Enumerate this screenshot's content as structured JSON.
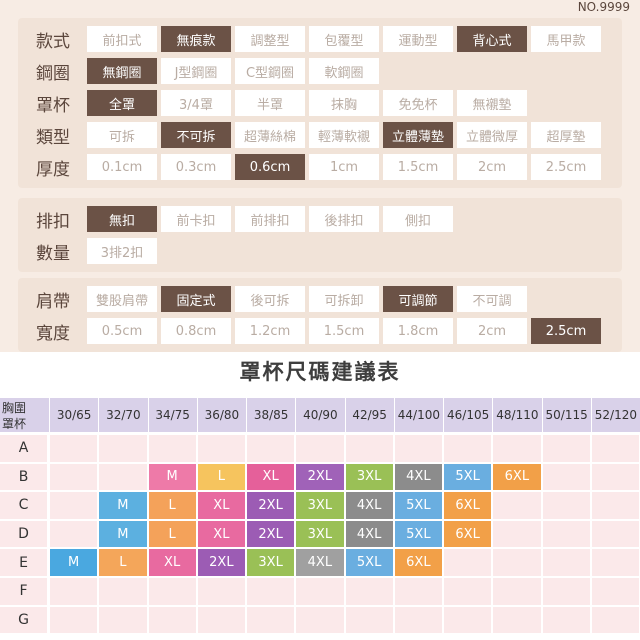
{
  "product_no": "NO.9999",
  "spec_groups": [
    {
      "rows": [
        {
          "label": "款式",
          "options": [
            {
              "text": "前扣式",
              "selected": false
            },
            {
              "text": "無痕款",
              "selected": true
            },
            {
              "text": "調整型",
              "selected": false
            },
            {
              "text": "包覆型",
              "selected": false
            },
            {
              "text": "運動型",
              "selected": false
            },
            {
              "text": "背心式",
              "selected": true
            },
            {
              "text": "馬甲款",
              "selected": false
            }
          ]
        },
        {
          "label": "鋼圈",
          "options": [
            {
              "text": "無鋼圈",
              "selected": true
            },
            {
              "text": "J型鋼圈",
              "selected": false
            },
            {
              "text": "C型鋼圈",
              "selected": false
            },
            {
              "text": "軟鋼圈",
              "selected": false
            }
          ]
        },
        {
          "label": "罩杯",
          "options": [
            {
              "text": "全罩",
              "selected": true
            },
            {
              "text": "3/4罩",
              "selected": false
            },
            {
              "text": "半罩",
              "selected": false
            },
            {
              "text": "抹胸",
              "selected": false
            },
            {
              "text": "免免杯",
              "selected": false
            },
            {
              "text": "無襯墊",
              "selected": false
            }
          ]
        },
        {
          "label": "類型",
          "options": [
            {
              "text": "可拆",
              "selected": false
            },
            {
              "text": "不可拆",
              "selected": true
            },
            {
              "text": "超薄絲棉",
              "selected": false
            },
            {
              "text": "輕薄軟襯",
              "selected": false
            },
            {
              "text": "立體薄墊",
              "selected": true
            },
            {
              "text": "立體微厚",
              "selected": false
            },
            {
              "text": "超厚墊",
              "selected": false
            }
          ]
        },
        {
          "label": "厚度",
          "options": [
            {
              "text": "0.1cm",
              "selected": false
            },
            {
              "text": "0.3cm",
              "selected": false
            },
            {
              "text": "0.6cm",
              "selected": true
            },
            {
              "text": "1cm",
              "selected": false
            },
            {
              "text": "1.5cm",
              "selected": false
            },
            {
              "text": "2cm",
              "selected": false
            },
            {
              "text": "2.5cm",
              "selected": false
            }
          ]
        }
      ]
    },
    {
      "rows": [
        {
          "label": "排扣",
          "options": [
            {
              "text": "無扣",
              "selected": true
            },
            {
              "text": "前卡扣",
              "selected": false
            },
            {
              "text": "前排扣",
              "selected": false
            },
            {
              "text": "後排扣",
              "selected": false
            },
            {
              "text": "側扣",
              "selected": false
            }
          ]
        },
        {
          "label": "數量",
          "options": [
            {
              "text": "3排2扣",
              "selected": false
            }
          ]
        }
      ]
    },
    {
      "rows": [
        {
          "label": "肩帶",
          "options": [
            {
              "text": "雙股肩帶",
              "selected": false
            },
            {
              "text": "固定式",
              "selected": true
            },
            {
              "text": "後可拆",
              "selected": false
            },
            {
              "text": "可拆卸",
              "selected": false
            },
            {
              "text": "可調節",
              "selected": true
            },
            {
              "text": "不可調",
              "selected": false
            }
          ]
        },
        {
          "label": "寬度",
          "options": [
            {
              "text": "0.5cm",
              "selected": false
            },
            {
              "text": "0.8cm",
              "selected": false
            },
            {
              "text": "1.2cm",
              "selected": false
            },
            {
              "text": "1.5cm",
              "selected": false
            },
            {
              "text": "1.8cm",
              "selected": false
            },
            {
              "text": "2cm",
              "selected": false
            },
            {
              "text": "2.5cm",
              "selected": true
            }
          ]
        }
      ]
    }
  ],
  "size_table": {
    "title": "罩杯尺碼建議表",
    "corner": [
      "胸圍",
      "罩杯"
    ],
    "columns": [
      "30/65",
      "32/70",
      "34/75",
      "36/80",
      "38/85",
      "40/90",
      "42/95",
      "44/100",
      "46/105",
      "48/110",
      "50/115",
      "52/120"
    ],
    "rows": [
      {
        "cup": "A",
        "cells": [
          null,
          null,
          null,
          null,
          null,
          null,
          null,
          null,
          null,
          null,
          null,
          null
        ]
      },
      {
        "cup": "B",
        "cells": [
          null,
          null,
          {
            "text": "M",
            "color": "#ee7aa8"
          },
          {
            "text": "L",
            "color": "#f6c45e"
          },
          {
            "text": "XL",
            "color": "#e5609a"
          },
          {
            "text": "2XL",
            "color": "#a062b8"
          },
          {
            "text": "3XL",
            "color": "#9ac056"
          },
          {
            "text": "4XL",
            "color": "#8c8c8c"
          },
          {
            "text": "5XL",
            "color": "#6aaee0"
          },
          {
            "text": "6XL",
            "color": "#f2a048"
          },
          null,
          null
        ]
      },
      {
        "cup": "C",
        "cells": [
          null,
          {
            "text": "M",
            "color": "#5cb0e0"
          },
          {
            "text": "L",
            "color": "#f4a25a"
          },
          {
            "text": "XL",
            "color": "#e86aa0"
          },
          {
            "text": "2XL",
            "color": "#9c5cb4"
          },
          {
            "text": "3XL",
            "color": "#9ac056"
          },
          {
            "text": "4XL",
            "color": "#8c8c8c"
          },
          {
            "text": "5XL",
            "color": "#6aaee0"
          },
          {
            "text": "6XL",
            "color": "#f2a048"
          },
          null,
          null,
          null
        ]
      },
      {
        "cup": "D",
        "cells": [
          null,
          {
            "text": "M",
            "color": "#5cb0e0"
          },
          {
            "text": "L",
            "color": "#f4a25a"
          },
          {
            "text": "XL",
            "color": "#e86aa0"
          },
          {
            "text": "2XL",
            "color": "#9c5cb4"
          },
          {
            "text": "3XL",
            "color": "#9ac056"
          },
          {
            "text": "4XL",
            "color": "#8c8c8c"
          },
          {
            "text": "5XL",
            "color": "#6aaee0"
          },
          {
            "text": "6XL",
            "color": "#f2a048"
          },
          null,
          null,
          null
        ]
      },
      {
        "cup": "E",
        "cells": [
          {
            "text": "M",
            "color": "#4aa8e0"
          },
          {
            "text": "L",
            "color": "#f4a65a"
          },
          {
            "text": "XL",
            "color": "#e86aa0"
          },
          {
            "text": "2XL",
            "color": "#9c5cb4"
          },
          {
            "text": "3XL",
            "color": "#9ac056"
          },
          {
            "text": "4XL",
            "color": "#a0a0a0"
          },
          {
            "text": "5XL",
            "color": "#6aaee0"
          },
          {
            "text": "6XL",
            "color": "#f2a048"
          },
          null,
          null,
          null,
          null
        ]
      },
      {
        "cup": "F",
        "cells": [
          null,
          null,
          null,
          null,
          null,
          null,
          null,
          null,
          null,
          null,
          null,
          null
        ]
      },
      {
        "cup": "G",
        "cells": [
          null,
          null,
          null,
          null,
          null,
          null,
          null,
          null,
          null,
          null,
          null,
          null
        ]
      }
    ]
  }
}
